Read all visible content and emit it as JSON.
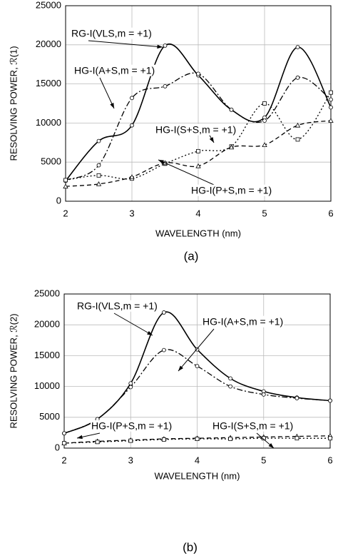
{
  "chart_data": [
    {
      "type": "line",
      "caption": "(a)",
      "xlabel": "WAVELENGTH (nm)",
      "ylabel": "RESOLVING POWER, ℛ(1)",
      "x": [
        2,
        2.5,
        3,
        3.5,
        4,
        4.5,
        5,
        5.5,
        6
      ],
      "xlim": [
        2,
        6
      ],
      "xticks": [
        2,
        3,
        4,
        5,
        6
      ],
      "ylim": [
        0,
        25000
      ],
      "yticks": [
        0,
        5000,
        10000,
        15000,
        20000,
        25000
      ],
      "grid": true,
      "series": [
        {
          "name": "RG-I(VLS,m = +1)",
          "color": "#000000",
          "dash": "solid",
          "marker": "circle",
          "values": [
            2600,
            7700,
            9700,
            19900,
            16100,
            11700,
            10700,
            19700,
            12000
          ]
        },
        {
          "name": "HG-I(A+S,m = +1)",
          "color": "#000000",
          "dash": "dashdot",
          "marker": "circle",
          "values": [
            2700,
            4600,
            13200,
            14700,
            16300,
            11700,
            10300,
            15800,
            13000
          ]
        },
        {
          "name": "HG-I(S+S,m = +1)",
          "color": "#000000",
          "dash": "dotted",
          "marker": "square",
          "values": [
            2700,
            3300,
            2900,
            4800,
            6400,
            7000,
            12500,
            7900,
            13900
          ]
        },
        {
          "name": "HG-I(P+S,m = +1)",
          "color": "#000000",
          "dash": "dashed",
          "marker": "triangle",
          "values": [
            1900,
            2200,
            3100,
            4900,
            4500,
            6900,
            7200,
            9700,
            10300
          ]
        }
      ]
    },
    {
      "type": "line",
      "caption": "(b)",
      "xlabel": "WAVELENGTH (nm)",
      "ylabel": "RESOLVING POWER, ℛ(2)",
      "x": [
        2,
        2.5,
        3,
        3.5,
        4,
        4.5,
        5,
        5.5,
        6
      ],
      "xlim": [
        2,
        6
      ],
      "xticks": [
        2,
        3,
        4,
        5,
        6
      ],
      "ylim": [
        0,
        25000
      ],
      "yticks": [
        0,
        5000,
        10000,
        15000,
        20000,
        25000
      ],
      "grid": true,
      "series": [
        {
          "name": "RG-I(VLS,m = +1)",
          "color": "#000000",
          "dash": "solid",
          "marker": "circle",
          "values": [
            2400,
            4700,
            10500,
            22000,
            16000,
            11300,
            9200,
            8200,
            7700
          ]
        },
        {
          "name": "HG-I(A+S,m = +1)",
          "color": "#000000",
          "dash": "dashdot",
          "marker": "circle",
          "values": [
            2400,
            4700,
            9900,
            15900,
            13300,
            10000,
            8700,
            8100,
            7700
          ]
        },
        {
          "name": "HG-I(P+S,m = +1)",
          "color": "#000000",
          "dash": "dashed",
          "marker": "triangle",
          "values": [
            800,
            1100,
            1300,
            1500,
            1600,
            1700,
            1800,
            1900,
            2000
          ]
        },
        {
          "name": "HG-I(S+S,m = +1)",
          "color": "#000000",
          "dash": "dotted",
          "marker": "square",
          "values": [
            800,
            1000,
            1200,
            1400,
            1500,
            1500,
            1600,
            1600,
            1600
          ]
        }
      ]
    }
  ]
}
